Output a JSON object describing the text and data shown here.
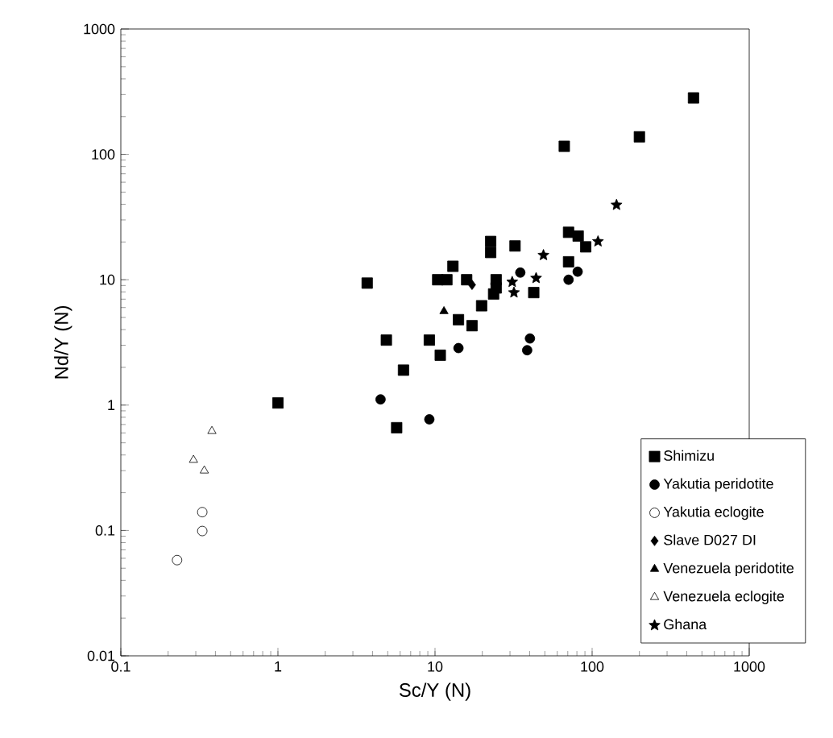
{
  "chart_data": {
    "type": "scatter",
    "xlabel": "Sc/Y (N)",
    "ylabel": "Nd/Y (N)",
    "log": "xy",
    "xlim": [
      0.1,
      1000
    ],
    "ylim": [
      0.01,
      1000
    ],
    "xticks": [
      0.1,
      1,
      10,
      100,
      1000
    ],
    "yticks": [
      0.01,
      0.1,
      1,
      10,
      100,
      1000
    ],
    "legend": "bottom right",
    "grid": false,
    "series": [
      {
        "name": "Shimizu",
        "color": "#000000",
        "marker": "square",
        "x": [
          442,
          200,
          66.5,
          3.7,
          1.0,
          4.9,
          6.3,
          5.7,
          9.2,
          10.8,
          10.4,
          11.9,
          13,
          15.9,
          19.8,
          23.6,
          24.5,
          22.6,
          22.6,
          32.3,
          17.2,
          14.1,
          42.5,
          70.8,
          81.5,
          91,
          70.8,
          24.5
        ],
        "values": [
          282,
          138,
          116,
          9.4,
          1.04,
          3.3,
          1.9,
          0.66,
          3.3,
          2.5,
          10,
          10,
          12.8,
          10,
          6.2,
          7.7,
          10,
          20.2,
          16.5,
          18.6,
          4.3,
          4.8,
          7.9,
          23.9,
          22.3,
          18.3,
          13.9,
          8.6
        ]
      },
      {
        "name": "Yakutia peridotite",
        "color": "#000000",
        "marker": "circle",
        "x": [
          4.5,
          9.2,
          14.1,
          34.9,
          40.2,
          38.6,
          70.8,
          80.9
        ],
        "values": [
          1.11,
          0.77,
          2.85,
          11.4,
          3.4,
          2.74,
          10,
          11.6
        ]
      },
      {
        "name": "Yakutia eclogite",
        "color": "#ffffff",
        "marker": "circle",
        "x": [
          0.228,
          0.33,
          0.33
        ],
        "values": [
          0.058,
          0.099,
          0.14
        ]
      },
      {
        "name": "Slave D027 DI",
        "color": "#000000",
        "marker": "diamond",
        "x": [
          17.2
        ],
        "values": [
          9.1
        ]
      },
      {
        "name": "Venezuela peridotite",
        "color": "#000000",
        "marker": "triangle",
        "x": [
          11.4
        ],
        "values": [
          5.6
        ]
      },
      {
        "name": "Venezuela eclogite",
        "color": "#ffffff",
        "marker": "triangle",
        "x": [
          0.38,
          0.29,
          0.34
        ],
        "values": [
          0.62,
          0.365,
          0.3
        ]
      },
      {
        "name": "Ghana",
        "color": "#000000",
        "marker": "star",
        "x": [
          143,
          109,
          49,
          44,
          31.8,
          31
        ],
        "values": [
          39.5,
          20.2,
          15.7,
          10.3,
          7.9,
          9.6
        ]
      }
    ]
  }
}
